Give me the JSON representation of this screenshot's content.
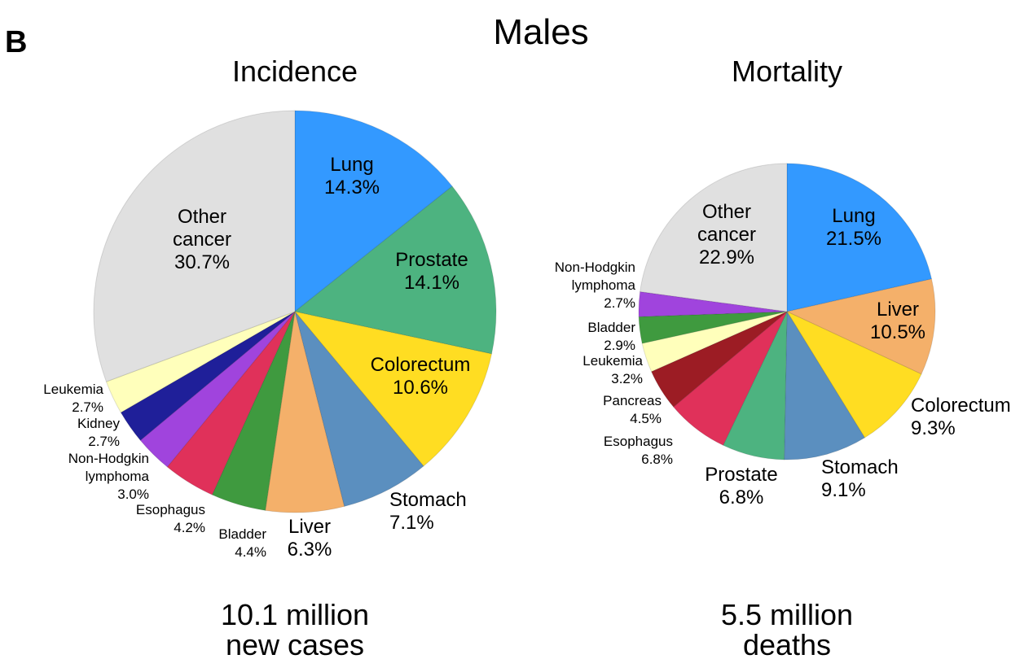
{
  "panel_letter": "B",
  "figure_title": "Males",
  "chart_data": [
    {
      "type": "pie",
      "title": "Incidence",
      "caption": [
        "10.1 million",
        "new cases"
      ],
      "slices": [
        {
          "label": "Lung",
          "value": 14.3,
          "display": "14.3%",
          "color": "#3399ff"
        },
        {
          "label": "Prostate",
          "value": 14.1,
          "display": "14.1%",
          "color": "#4db380"
        },
        {
          "label": "Colorectum",
          "value": 10.6,
          "display": "10.6%",
          "color": "#ffdd22"
        },
        {
          "label": "Stomach",
          "value": 7.1,
          "display": "7.1%",
          "color": "#5b8fbf"
        },
        {
          "label": "Liver",
          "value": 6.3,
          "display": "6.3%",
          "color": "#f4b06a"
        },
        {
          "label": "Bladder",
          "value": 4.4,
          "display": "4.4%",
          "color": "#3f9a3f"
        },
        {
          "label": "Esophagus",
          "value": 4.2,
          "display": "4.2%",
          "color": "#e0315a"
        },
        {
          "label": "Non-Hodgkin lymphoma",
          "value": 3.0,
          "display": "3.0%",
          "color": "#a044dd"
        },
        {
          "label": "Kidney",
          "value": 2.7,
          "display": "2.7%",
          "color": "#1f1f99"
        },
        {
          "label": "Leukemia",
          "value": 2.7,
          "display": "2.7%",
          "color": "#ffffbb"
        },
        {
          "label": "Other cancer",
          "value": 30.7,
          "display": "30.7%",
          "color": "#e0e0e0"
        }
      ]
    },
    {
      "type": "pie",
      "title": "Mortality",
      "caption": [
        "5.5 million",
        "deaths"
      ],
      "slices": [
        {
          "label": "Lung",
          "value": 21.5,
          "display": "21.5%",
          "color": "#3399ff"
        },
        {
          "label": "Liver",
          "value": 10.5,
          "display": "10.5%",
          "color": "#f4b06a"
        },
        {
          "label": "Colorectum",
          "value": 9.3,
          "display": "9.3%",
          "color": "#ffdd22"
        },
        {
          "label": "Stomach",
          "value": 9.1,
          "display": "9.1%",
          "color": "#5b8fbf"
        },
        {
          "label": "Prostate",
          "value": 6.8,
          "display": "6.8%",
          "color": "#4db380"
        },
        {
          "label": "Esophagus",
          "value": 6.8,
          "display": "6.8%",
          "color": "#e0315a"
        },
        {
          "label": "Pancreas",
          "value": 4.5,
          "display": "4.5%",
          "color": "#9c1c24"
        },
        {
          "label": "Leukemia",
          "value": 3.2,
          "display": "3.2%",
          "color": "#ffffbb"
        },
        {
          "label": "Bladder",
          "value": 2.9,
          "display": "2.9%",
          "color": "#3f9a3f"
        },
        {
          "label": "Non-Hodgkin lymphoma",
          "value": 2.7,
          "display": "2.7%",
          "color": "#a044dd"
        },
        {
          "label": "Other cancer",
          "value": 22.9,
          "display": "22.9%",
          "color": "#e0e0e0"
        }
      ]
    }
  ]
}
